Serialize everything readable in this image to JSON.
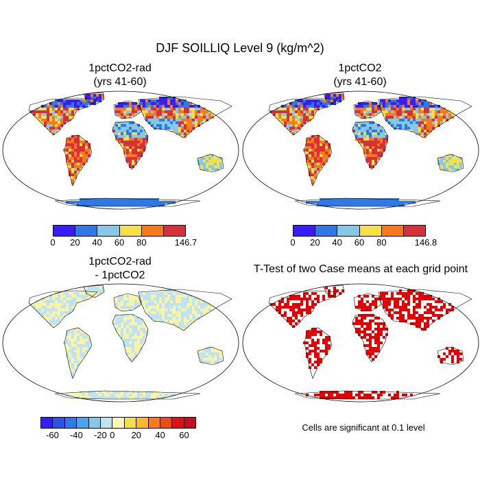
{
  "main_title": "DJF SOILLIQ Level 9 (kg/m^2)",
  "panels": {
    "top_left": {
      "title_line1": "1pctCO2-rad",
      "title_line2": "(yrs 41-60)"
    },
    "top_right": {
      "title_line1": "1pctCO2",
      "title_line2": "(yrs 41-60)"
    },
    "bottom_left": {
      "title_line1": "1pctCO2-rad",
      "title_line2": "- 1pctCO2"
    },
    "bottom_right": {
      "title_line1": "T-Test of two Case means at each grid point"
    }
  },
  "colorbars": {
    "top_left": {
      "colors": [
        "#3a1cf7",
        "#2e78e8",
        "#86c8e8",
        "#f5e04a",
        "#f97a1c",
        "#d7303a"
      ],
      "labels": [
        "0",
        "20",
        "40",
        "60",
        "80",
        "146.7"
      ]
    },
    "top_right": {
      "colors": [
        "#3a1cf7",
        "#2e78e8",
        "#86c8e8",
        "#f5e04a",
        "#f97a1c",
        "#d7303a"
      ],
      "labels": [
        "0",
        "20",
        "40",
        "60",
        "80",
        "146.8"
      ]
    },
    "bottom_left": {
      "colors": [
        "#3a1cf7",
        "#2a52e6",
        "#2e78e8",
        "#4aa3ef",
        "#86c8e8",
        "#bfe3f3",
        "#fdf5b8",
        "#f5e04a",
        "#f7bb2e",
        "#f97a1c",
        "#ee4a1e",
        "#e21010",
        "#c40d1f"
      ],
      "labels": [
        "-60",
        "-40",
        "-20",
        "0",
        "20",
        "40",
        "60"
      ]
    }
  },
  "significance_note": "Cells are significant at 0.1 level",
  "map_colors": {
    "ttest_red": "#e00000",
    "diff_blue": "#bfe3f3",
    "diff_yellow": "#fbf3a8"
  }
}
